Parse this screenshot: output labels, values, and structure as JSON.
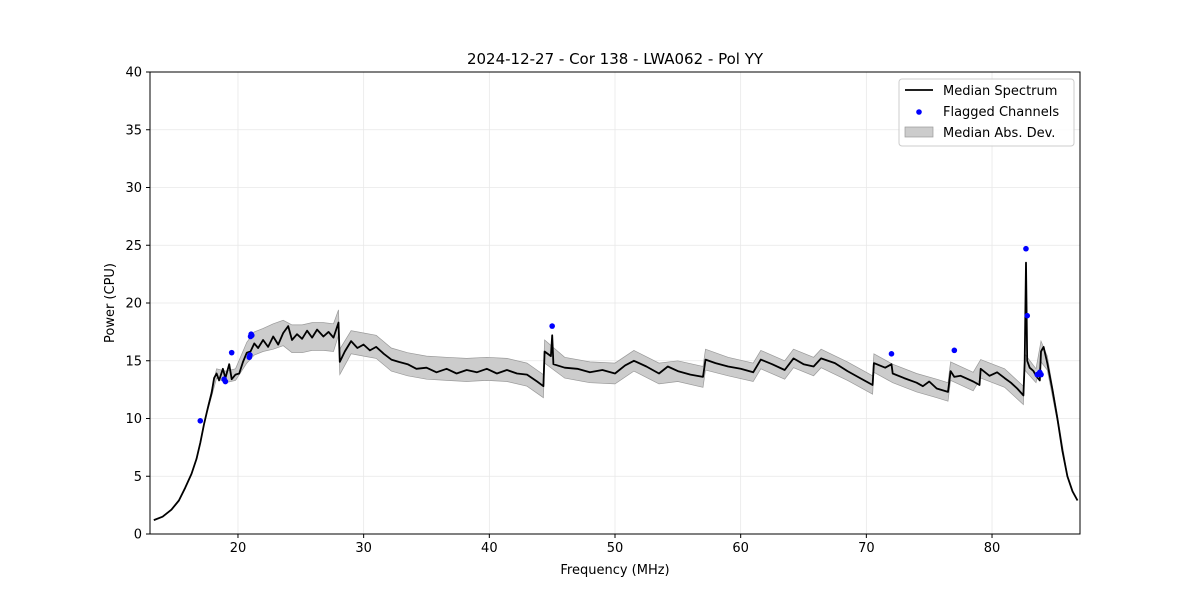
{
  "chart_data": {
    "type": "line",
    "title": "2024-12-27 - Cor 138 - LWA062 - Pol YY",
    "xlabel": "Frequency (MHz)",
    "ylabel": "Power (CPU)",
    "xlim": [
      13,
      87
    ],
    "ylim": [
      0,
      40
    ],
    "xticks": [
      20,
      30,
      40,
      50,
      60,
      70,
      80
    ],
    "yticks": [
      0,
      5,
      10,
      15,
      20,
      25,
      30,
      35,
      40
    ],
    "grid": true,
    "legend_position": "top-right",
    "legend": [
      {
        "label": "Median Spectrum",
        "kind": "line",
        "color": "#000000"
      },
      {
        "label": "Flagged Channels",
        "kind": "marker",
        "color": "#0000ff"
      },
      {
        "label": "Median Abs. Dev.",
        "kind": "band",
        "color": "#cccccc"
      }
    ],
    "series": [
      {
        "name": "Median Spectrum",
        "color": "#000000",
        "points": [
          [
            13.3,
            1.2
          ],
          [
            14.0,
            1.5
          ],
          [
            14.7,
            2.1
          ],
          [
            15.3,
            2.9
          ],
          [
            15.8,
            4.0
          ],
          [
            16.3,
            5.2
          ],
          [
            16.7,
            6.5
          ],
          [
            17.0,
            7.9
          ],
          [
            17.3,
            9.5
          ],
          [
            17.6,
            10.9
          ],
          [
            17.9,
            12.2
          ],
          [
            18.1,
            13.5
          ],
          [
            18.3,
            13.9
          ],
          [
            18.5,
            13.3
          ],
          [
            18.8,
            14.3
          ],
          [
            19.0,
            13.5
          ],
          [
            19.3,
            14.7
          ],
          [
            19.5,
            13.4
          ],
          [
            19.8,
            13.8
          ],
          [
            20.1,
            13.9
          ],
          [
            20.4,
            14.9
          ],
          [
            20.7,
            15.7
          ],
          [
            21.0,
            15.8
          ],
          [
            21.3,
            16.5
          ],
          [
            21.6,
            16.1
          ],
          [
            22.0,
            16.8
          ],
          [
            22.4,
            16.2
          ],
          [
            22.8,
            17.1
          ],
          [
            23.2,
            16.4
          ],
          [
            23.6,
            17.4
          ],
          [
            24.0,
            18.0
          ],
          [
            24.3,
            16.8
          ],
          [
            24.7,
            17.3
          ],
          [
            25.1,
            16.9
          ],
          [
            25.5,
            17.6
          ],
          [
            25.9,
            17.0
          ],
          [
            26.3,
            17.7
          ],
          [
            26.8,
            17.1
          ],
          [
            27.2,
            17.5
          ],
          [
            27.6,
            17.0
          ],
          [
            28.0,
            18.3
          ],
          [
            28.1,
            14.9
          ],
          [
            28.5,
            15.8
          ],
          [
            29.0,
            16.7
          ],
          [
            29.5,
            16.1
          ],
          [
            30.0,
            16.4
          ],
          [
            30.5,
            15.9
          ],
          [
            31.0,
            16.2
          ],
          [
            31.6,
            15.6
          ],
          [
            32.2,
            15.1
          ],
          [
            32.8,
            14.9
          ],
          [
            33.5,
            14.7
          ],
          [
            34.2,
            14.3
          ],
          [
            35.0,
            14.4
          ],
          [
            35.8,
            14.0
          ],
          [
            36.6,
            14.3
          ],
          [
            37.4,
            13.9
          ],
          [
            38.2,
            14.2
          ],
          [
            39.0,
            14.0
          ],
          [
            39.8,
            14.3
          ],
          [
            40.6,
            13.9
          ],
          [
            41.4,
            14.2
          ],
          [
            42.2,
            13.9
          ],
          [
            43.0,
            13.8
          ],
          [
            43.8,
            13.2
          ],
          [
            44.3,
            12.8
          ],
          [
            44.4,
            15.8
          ],
          [
            44.9,
            15.4
          ],
          [
            45.0,
            17.2
          ],
          [
            45.1,
            14.7
          ],
          [
            46.0,
            14.4
          ],
          [
            47.0,
            14.3
          ],
          [
            48.0,
            14.0
          ],
          [
            49.0,
            14.2
          ],
          [
            50.0,
            13.9
          ],
          [
            50.8,
            14.6
          ],
          [
            51.5,
            15.0
          ],
          [
            52.5,
            14.5
          ],
          [
            53.5,
            13.9
          ],
          [
            54.2,
            14.5
          ],
          [
            55.0,
            14.1
          ],
          [
            56.0,
            13.8
          ],
          [
            57.0,
            13.6
          ],
          [
            57.2,
            15.1
          ],
          [
            58.0,
            14.8
          ],
          [
            59.0,
            14.5
          ],
          [
            60.0,
            14.3
          ],
          [
            61.0,
            14.0
          ],
          [
            61.6,
            15.1
          ],
          [
            62.5,
            14.7
          ],
          [
            63.5,
            14.2
          ],
          [
            64.2,
            15.2
          ],
          [
            65.0,
            14.7
          ],
          [
            65.8,
            14.5
          ],
          [
            66.4,
            15.2
          ],
          [
            67.5,
            14.8
          ],
          [
            68.5,
            14.1
          ],
          [
            69.5,
            13.5
          ],
          [
            70.5,
            12.9
          ],
          [
            70.6,
            14.8
          ],
          [
            71.5,
            14.4
          ],
          [
            72.0,
            14.7
          ],
          [
            72.1,
            13.9
          ],
          [
            73.0,
            13.5
          ],
          [
            74.0,
            13.1
          ],
          [
            74.5,
            12.8
          ],
          [
            75.0,
            13.2
          ],
          [
            75.6,
            12.6
          ],
          [
            76.5,
            12.3
          ],
          [
            76.7,
            14.1
          ],
          [
            77.0,
            13.6
          ],
          [
            77.5,
            13.7
          ],
          [
            78.5,
            13.2
          ],
          [
            79.0,
            12.9
          ],
          [
            79.1,
            14.3
          ],
          [
            79.8,
            13.7
          ],
          [
            80.4,
            14.0
          ],
          [
            81.0,
            13.5
          ],
          [
            81.5,
            13.1
          ],
          [
            82.0,
            12.6
          ],
          [
            82.5,
            12.0
          ],
          [
            82.6,
            14.9
          ],
          [
            82.7,
            23.5
          ],
          [
            82.8,
            15.0
          ],
          [
            83.0,
            14.4
          ],
          [
            83.3,
            14.1
          ],
          [
            83.5,
            13.7
          ],
          [
            83.8,
            13.3
          ],
          [
            83.9,
            15.8
          ],
          [
            84.1,
            16.2
          ],
          [
            84.4,
            14.8
          ],
          [
            84.8,
            12.5
          ],
          [
            85.2,
            10.0
          ],
          [
            85.6,
            7.2
          ],
          [
            86.0,
            5.0
          ],
          [
            86.4,
            3.7
          ],
          [
            86.8,
            2.9
          ]
        ]
      }
    ],
    "mad_band": {
      "name": "Median Abs. Dev.",
      "color": "#cccccc",
      "points": [
        [
          17.6,
          10.9,
          0.2
        ],
        [
          18.3,
          13.9,
          0.4
        ],
        [
          19.0,
          13.6,
          0.5
        ],
        [
          19.8,
          13.8,
          0.5
        ],
        [
          20.7,
          15.7,
          0.9
        ],
        [
          21.3,
          16.5,
          1.0
        ],
        [
          22.0,
          16.8,
          1.0
        ],
        [
          22.8,
          17.1,
          1.1
        ],
        [
          23.6,
          17.4,
          1.1
        ],
        [
          24.3,
          16.9,
          1.2
        ],
        [
          25.1,
          16.9,
          1.2
        ],
        [
          25.9,
          17.1,
          1.2
        ],
        [
          26.8,
          17.1,
          1.2
        ],
        [
          27.6,
          17.0,
          1.2
        ],
        [
          28.0,
          18.3,
          1.1
        ],
        [
          28.1,
          14.9,
          1.1
        ],
        [
          29.0,
          16.6,
          1.0
        ],
        [
          30.0,
          16.4,
          1.0
        ],
        [
          31.0,
          16.2,
          1.0
        ],
        [
          32.2,
          15.1,
          1.0
        ],
        [
          33.5,
          14.7,
          1.0
        ],
        [
          35.0,
          14.4,
          1.0
        ],
        [
          36.6,
          14.3,
          1.0
        ],
        [
          38.2,
          14.2,
          1.0
        ],
        [
          39.8,
          14.3,
          1.0
        ],
        [
          41.4,
          14.2,
          1.0
        ],
        [
          43.0,
          13.8,
          1.0
        ],
        [
          44.3,
          12.8,
          1.0
        ],
        [
          44.4,
          15.8,
          1.0
        ],
        [
          46.0,
          14.4,
          0.9
        ],
        [
          48.0,
          14.0,
          0.9
        ],
        [
          50.0,
          13.9,
          0.9
        ],
        [
          51.5,
          15.0,
          0.9
        ],
        [
          53.5,
          13.9,
          0.9
        ],
        [
          55.0,
          14.1,
          0.9
        ],
        [
          57.0,
          13.6,
          0.9
        ],
        [
          57.2,
          15.1,
          0.9
        ],
        [
          59.0,
          14.5,
          0.8
        ],
        [
          61.0,
          14.0,
          0.8
        ],
        [
          61.6,
          15.1,
          0.8
        ],
        [
          63.5,
          14.2,
          0.8
        ],
        [
          64.2,
          15.2,
          0.8
        ],
        [
          65.8,
          14.5,
          0.8
        ],
        [
          66.4,
          15.2,
          0.8
        ],
        [
          68.5,
          14.1,
          0.8
        ],
        [
          70.5,
          12.9,
          0.8
        ],
        [
          70.6,
          14.8,
          0.8
        ],
        [
          72.1,
          13.9,
          0.8
        ],
        [
          74.0,
          13.1,
          0.8
        ],
        [
          75.6,
          12.6,
          0.8
        ],
        [
          76.5,
          12.3,
          0.8
        ],
        [
          76.7,
          14.1,
          0.8
        ],
        [
          78.5,
          13.2,
          0.8
        ],
        [
          79.1,
          14.3,
          0.8
        ],
        [
          81.0,
          13.5,
          0.8
        ],
        [
          82.5,
          12.0,
          0.8
        ],
        [
          82.6,
          14.9,
          0.7
        ],
        [
          83.5,
          13.7,
          0.6
        ],
        [
          83.9,
          15.8,
          0.9
        ],
        [
          84.4,
          14.8,
          0.6
        ],
        [
          85.2,
          10.0,
          0.3
        ],
        [
          86.0,
          5.0,
          0.1
        ]
      ]
    },
    "flagged_channels": [
      [
        17.0,
        9.8
      ],
      [
        18.9,
        13.4
      ],
      [
        19.0,
        13.2
      ],
      [
        19.5,
        15.7
      ],
      [
        20.9,
        15.3
      ],
      [
        20.95,
        15.5
      ],
      [
        21.0,
        17.1
      ],
      [
        21.05,
        17.3
      ],
      [
        21.1,
        17.2
      ],
      [
        45.0,
        18.0
      ],
      [
        72.0,
        15.6
      ],
      [
        77.0,
        15.9
      ],
      [
        82.7,
        24.7
      ],
      [
        82.8,
        18.9
      ],
      [
        83.6,
        13.8
      ],
      [
        83.8,
        14.0
      ],
      [
        83.9,
        13.8
      ]
    ]
  }
}
